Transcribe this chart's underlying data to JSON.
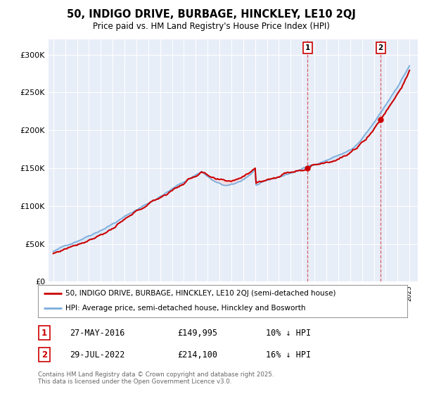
{
  "title": "50, INDIGO DRIVE, BURBAGE, HINCKLEY, LE10 2QJ",
  "subtitle": "Price paid vs. HM Land Registry's House Price Index (HPI)",
  "ylim": [
    0,
    320000
  ],
  "yticks": [
    0,
    50000,
    100000,
    150000,
    200000,
    250000,
    300000
  ],
  "ytick_labels": [
    "£0",
    "£50K",
    "£100K",
    "£150K",
    "£200K",
    "£250K",
    "£300K"
  ],
  "hpi_color": "#7aaddc",
  "hpi_fill_color": "#d0e4f5",
  "price_color": "#cc0000",
  "annotation_color": "#cc0000",
  "marker1_year": 2016.41,
  "marker1_price": 149995,
  "marker1_label": "1",
  "marker1_date": "27-MAY-2016",
  "marker1_amount": "£149,995",
  "marker1_note": "10% ↓ HPI",
  "marker2_year": 2022.57,
  "marker2_price": 214100,
  "marker2_label": "2",
  "marker2_date": "29-JUL-2022",
  "marker2_amount": "£214,100",
  "marker2_note": "16% ↓ HPI",
  "legend_line1": "50, INDIGO DRIVE, BURBAGE, HINCKLEY, LE10 2QJ (semi-detached house)",
  "legend_line2": "HPI: Average price, semi-detached house, Hinckley and Bosworth",
  "footer": "Contains HM Land Registry data © Crown copyright and database right 2025.\nThis data is licensed under the Open Government Licence v3.0.",
  "background_color": "#e8eef8"
}
